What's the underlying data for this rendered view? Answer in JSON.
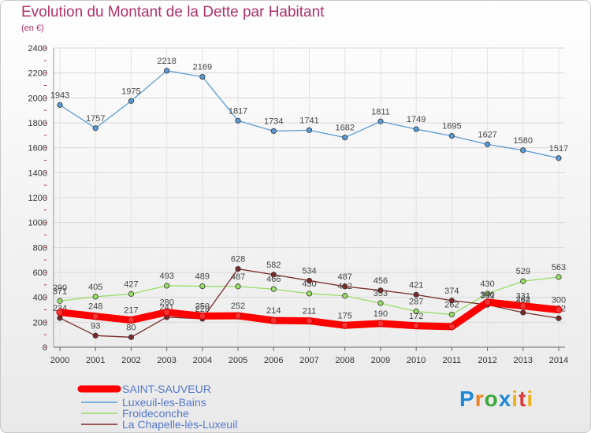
{
  "header": {
    "title": "Evolution du Montant de la Dette par Habitant",
    "subtitle": "(en €)"
  },
  "logo": {
    "text": "Proxiti"
  },
  "chart_data": {
    "type": "line",
    "title": "Evolution du Montant de la Dette par Habitant",
    "subtitle": "(en €)",
    "x": [
      "2000",
      "2001",
      "2002",
      "2003",
      "2004",
      "2005",
      "2006",
      "2007",
      "2008",
      "2009",
      "2010",
      "2011",
      "2012",
      "2013",
      "2014"
    ],
    "yticks": [
      0,
      200,
      400,
      600,
      800,
      1000,
      1200,
      1400,
      1600,
      1800,
      2000,
      2200,
      2400
    ],
    "ylim": [
      0,
      2400
    ],
    "grid": true,
    "legend_position": "bottom-left",
    "series": [
      {
        "name": "SAINT-SAUVEUR",
        "color": "#ff0000",
        "values": [
          280,
          248,
          217,
          280,
          250,
          252,
          214,
          211,
          175,
          190,
          172,
          165,
          361,
          331,
          300
        ],
        "labels": [
          "",
          "248",
          "217",
          "280",
          "250",
          "252",
          "214",
          "211",
          "175",
          "190",
          "172",
          "",
          "",
          "331",
          "300"
        ]
      },
      {
        "name": "Luxeuil-les-Bains",
        "color": "#5b9bd5",
        "values": [
          1943,
          1757,
          1975,
          2218,
          2169,
          1817,
          1734,
          1741,
          1682,
          1811,
          1749,
          1695,
          1627,
          1580,
          1517
        ],
        "labels": [
          "1943",
          "1757",
          "1975",
          "2218",
          "2169",
          "1817",
          "1734",
          "1741",
          "1682",
          "1811",
          "1749",
          "1695",
          "1627",
          "1580",
          "1517"
        ]
      },
      {
        "name": "Froideconche",
        "color": "#99dd66",
        "values": [
          371,
          405,
          427,
          493,
          489,
          487,
          466,
          430,
          412,
          353,
          287,
          262,
          430,
          529,
          563
        ],
        "labels": [
          "371",
          "405",
          "427",
          "493",
          "489",
          "487",
          "466",
          "430",
          "412",
          "353",
          "287",
          "262",
          "430",
          "529",
          "563"
        ]
      },
      {
        "name": "La Chapelle-lès-Luxeuil",
        "color": "#7a2a2a",
        "values": [
          234,
          93,
          80,
          241,
          228,
          628,
          582,
          534,
          487,
          456,
          421,
          374,
          340,
          278,
          232
        ],
        "labels": [
          "234",
          "93",
          "80",
          "241",
          "228",
          "628",
          "582",
          "534",
          "487",
          "456",
          "421",
          "374",
          "340",
          "278",
          "232"
        ]
      }
    ],
    "overlap_labels": [
      "290",
      "331",
      "262"
    ]
  }
}
